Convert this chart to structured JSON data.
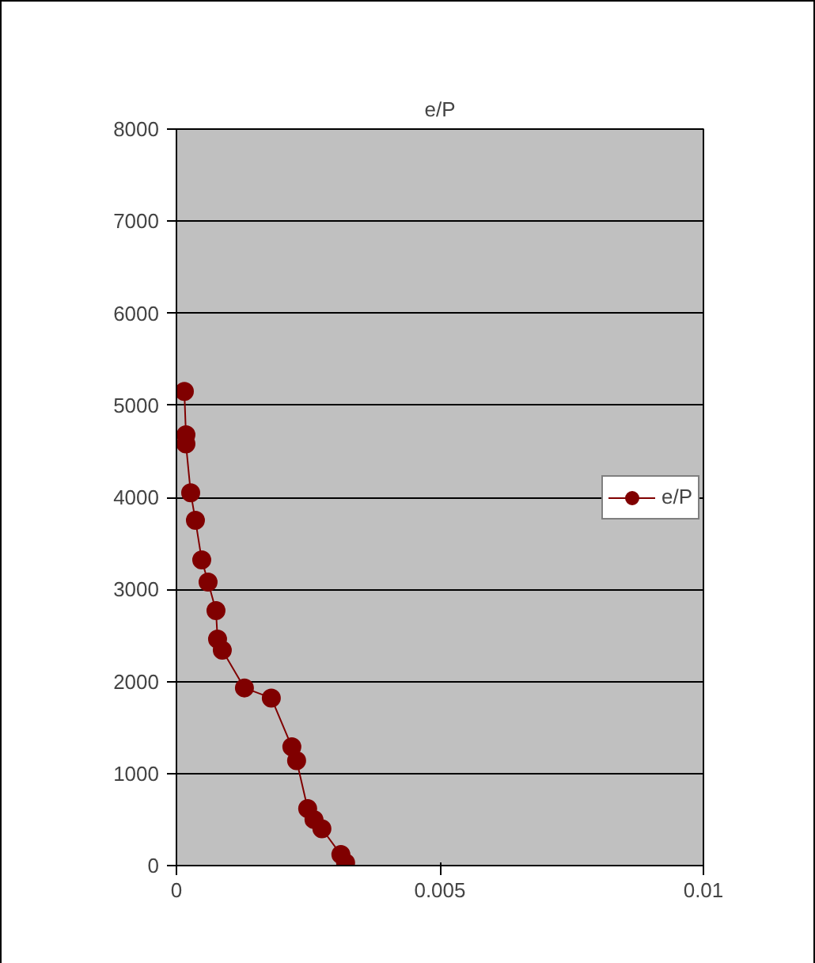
{
  "chart_data": {
    "type": "line",
    "title": "e/P",
    "marker": "circle",
    "line_style": "solid",
    "grid": "y",
    "legend": "right",
    "xlim": [
      0,
      0.01
    ],
    "xticks": [
      0,
      0.005,
      0.01
    ],
    "ylim": [
      0,
      8000
    ],
    "yticks": [
      0,
      1000,
      2000,
      3000,
      4000,
      5000,
      6000,
      7000,
      8000
    ],
    "series": [
      {
        "name": "e/P",
        "color": "#800000",
        "x": [
          0.00015,
          0.00018,
          0.00018,
          0.00027,
          0.00036,
          0.00048,
          0.0006,
          0.00075,
          0.00078,
          0.00087,
          0.00129,
          0.0018,
          0.00219,
          0.00228,
          0.00249,
          0.00261,
          0.00276,
          0.00312,
          0.00321
        ],
        "values": [
          5150,
          4680,
          4580,
          4050,
          3750,
          3320,
          3080,
          2770,
          2460,
          2340,
          1930,
          1820,
          1290,
          1140,
          620,
          500,
          400,
          120,
          30
        ]
      }
    ]
  }
}
